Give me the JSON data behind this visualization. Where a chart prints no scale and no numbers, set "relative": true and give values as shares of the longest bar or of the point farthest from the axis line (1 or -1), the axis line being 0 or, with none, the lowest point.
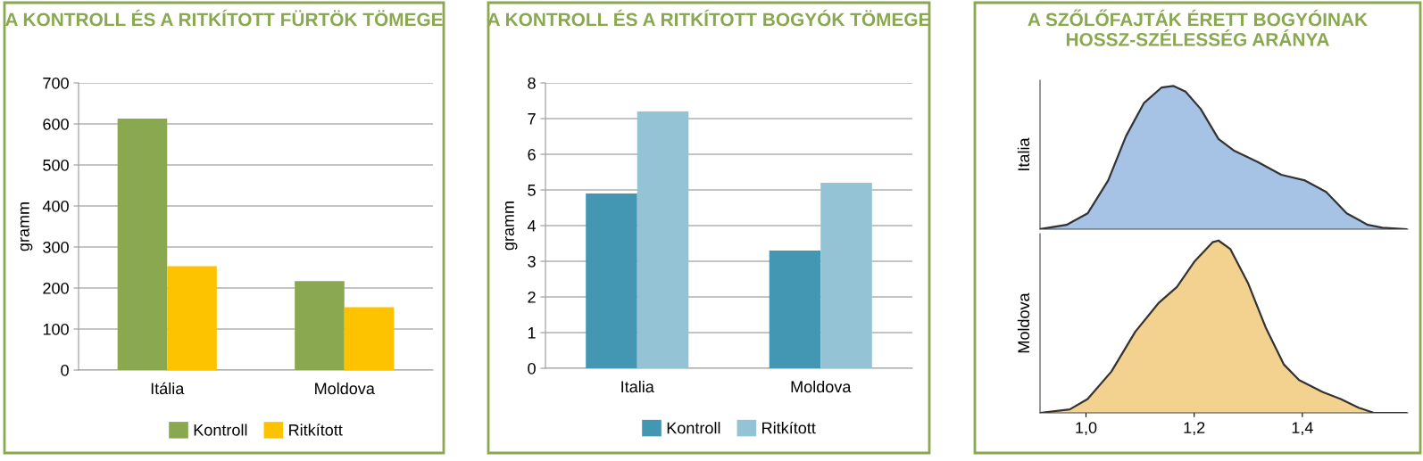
{
  "chart_data": [
    {
      "type": "bar",
      "title": "A KONTROLL ÉS A RITKÍTOTT FÜRTÖK TÖMEGE",
      "ylabel": "gramm",
      "categories": [
        "Itália",
        "Moldova"
      ],
      "series": [
        {
          "name": "Kontroll",
          "color": "#8aa84f",
          "values": [
            613,
            217
          ]
        },
        {
          "name": "Ritkított",
          "color": "#fdc300",
          "values": [
            253,
            153
          ]
        }
      ],
      "ylim": [
        0,
        700
      ],
      "yticks": [
        0,
        100,
        200,
        300,
        400,
        500,
        600,
        700
      ],
      "grid": "y",
      "legend": "bottom"
    },
    {
      "type": "bar",
      "title": "A KONTROLL ÉS A RITKÍTOTT BOGYÓK TÖMEGE",
      "ylabel": "gramm",
      "categories": [
        "Italia",
        "Moldova"
      ],
      "series": [
        {
          "name": "Kontroll",
          "color": "#4397b3",
          "values": [
            4.9,
            3.3
          ]
        },
        {
          "name": "Ritkított",
          "color": "#95c3d6",
          "values": [
            7.2,
            5.2
          ]
        }
      ],
      "ylim": [
        0,
        8
      ],
      "yticks": [
        0,
        1,
        2,
        3,
        4,
        5,
        6,
        7,
        8
      ],
      "grid": "y",
      "legend": "bottom"
    },
    {
      "type": "area",
      "title": "A SZŐLŐFAJTÁK ÉRETT BOGYÓINAK HOSSZ-SZÉLESSÉG ARÁNYA",
      "ylabel": "Italia",
      "relative": true,
      "tick_labels": false,
      "xlim": [
        0.915,
        1.595
      ],
      "series": [
        {
          "color": "#a6c3e6",
          "x": [
            0.915,
            0.964,
            1.003,
            1.041,
            1.074,
            1.107,
            1.14,
            1.162,
            1.184,
            1.212,
            1.245,
            1.273,
            1.317,
            1.361,
            1.405,
            1.444,
            1.482,
            1.521,
            1.548,
            1.592
          ],
          "values": [
            0,
            0.03,
            0.11,
            0.34,
            0.65,
            0.88,
            0.99,
            1.0,
            0.96,
            0.84,
            0.63,
            0.55,
            0.47,
            0.38,
            0.34,
            0.26,
            0.11,
            0.03,
            0.01,
            0
          ]
        }
      ]
    },
    {
      "type": "area",
      "ylabel": "Moldova",
      "relative": true,
      "tick_labels": "x",
      "xlim": [
        0.915,
        1.595
      ],
      "xticks": [
        {
          "value": 1.0,
          "label": "1,0"
        },
        {
          "value": 1.2,
          "label": "1,2"
        },
        {
          "value": 1.4,
          "label": "1,4"
        }
      ],
      "series": [
        {
          "color": "#f3d18f",
          "x": [
            0.915,
            0.97,
            1.003,
            1.047,
            1.091,
            1.135,
            1.168,
            1.201,
            1.234,
            1.245,
            1.267,
            1.3,
            1.333,
            1.366,
            1.394,
            1.438,
            1.471,
            1.504,
            1.532,
            1.592
          ],
          "values": [
            0,
            0.02,
            0.08,
            0.24,
            0.47,
            0.64,
            0.73,
            0.88,
            0.99,
            1.0,
            0.95,
            0.75,
            0.49,
            0.28,
            0.19,
            0.12,
            0.08,
            0.03,
            0.0,
            0
          ]
        }
      ]
    }
  ]
}
